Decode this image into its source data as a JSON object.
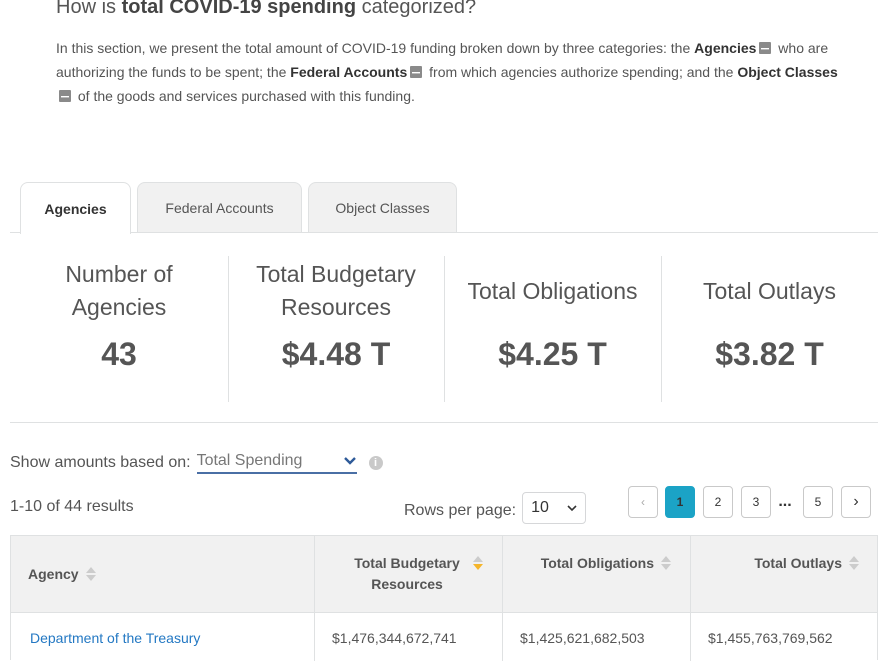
{
  "heading": {
    "pre": "How is ",
    "bold": "total COVID-19 spending",
    "post": " categorized?"
  },
  "intro": {
    "t1": "In this section, we present the total amount of COVID-19 funding broken down by three categories: the ",
    "b1": "Agencies",
    "t2": " who are authorizing the funds to be spent; the ",
    "b2": "Federal Accounts",
    "t3": " from which agencies authorize spending; and the ",
    "b3": "Object Classes",
    "t4": " of the goods and services purchased with this funding."
  },
  "tabs": [
    {
      "label": "Agencies"
    },
    {
      "label": "Federal Accounts"
    },
    {
      "label": "Object Classes"
    }
  ],
  "summary": [
    {
      "label": "Number of Agencies",
      "value": "43"
    },
    {
      "label": "Total Budgetary Resources",
      "value": "$4.48 T"
    },
    {
      "label": "Total Obligations",
      "value": "$4.25 T"
    },
    {
      "label": "Total Outlays",
      "value": "$3.82 T"
    }
  ],
  "controls": {
    "amounts_label": "Show amounts based on:",
    "amounts_value": "Total Spending",
    "results": "1-10 of 44 results",
    "rows_label": "Rows per page:",
    "rows_value": "10"
  },
  "pagination": {
    "prev": "‹",
    "pages": [
      "1",
      "2",
      "3"
    ],
    "ellipsis": "...",
    "last": "5",
    "next": "›"
  },
  "table": {
    "headers": [
      "Agency",
      "Total Budgetary Resources",
      "Total Obligations",
      "Total Outlays"
    ],
    "rows": [
      {
        "agency": "Department of the Treasury",
        "budgetary": "$1,476,344,672,741",
        "obligations": "$1,425,621,682,503",
        "outlays": "$1,455,763,769,562"
      }
    ]
  },
  "colors": {
    "accent": "#1ba3c6",
    "link": "#2378c3",
    "sort_active": "#f5b52b"
  }
}
